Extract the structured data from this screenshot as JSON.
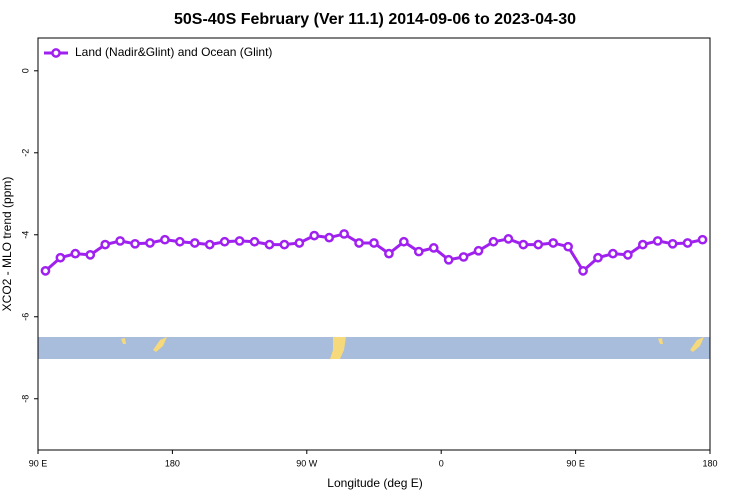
{
  "chart_data": {
    "type": "line",
    "title": "50S-40S February (Ver 11.1)   2014-09-06 to 2023-04-30",
    "xlabel": "Longitude (deg E)",
    "ylabel": "XCO2 - MLO trend (ppm)",
    "x": [
      95,
      105,
      115,
      125,
      135,
      145,
      155,
      165,
      175,
      185,
      195,
      205,
      215,
      225,
      235,
      245,
      255,
      265,
      275,
      285,
      295,
      305,
      315,
      325,
      335,
      345,
      355,
      365,
      375,
      385,
      395,
      405,
      415,
      425,
      435,
      445,
      455,
      465,
      475,
      485,
      495,
      505,
      515,
      525,
      535
    ],
    "series": [
      {
        "name": "Land (Nadir&Glint) and Ocean (Glint)",
        "color": "#a020f0",
        "values": [
          -4.88,
          -4.56,
          -4.46,
          -4.49,
          -4.24,
          -4.15,
          -4.22,
          -4.2,
          -4.12,
          -4.17,
          -4.2,
          -4.24,
          -4.17,
          -4.15,
          -4.17,
          -4.24,
          -4.24,
          -4.2,
          -4.02,
          -4.07,
          -3.98,
          -4.2,
          -4.2,
          -4.46,
          -4.17,
          -4.41,
          -4.32,
          -4.61,
          -4.54,
          -4.39,
          -4.17,
          -4.1,
          -4.24,
          -4.24,
          -4.2,
          -4.29,
          -4.88,
          -4.56,
          -4.46,
          -4.49,
          -4.24,
          -4.15,
          -4.22,
          -4.2,
          -4.12
        ]
      }
    ],
    "xlim": [
      90,
      540
    ],
    "xticks": [
      {
        "value": 90,
        "label": "90 E"
      },
      180,
      {
        "value": 270,
        "label": "90 W"
      },
      {
        "value": 360,
        "label": "0"
      },
      {
        "value": 450,
        "label": "90 E"
      },
      {
        "value": 540,
        "label": "180"
      }
    ],
    "ylim": [
      -9.25,
      0.8
    ],
    "yticks": [
      0,
      -2,
      -4,
      -6,
      -8
    ],
    "legend": "top-left"
  }
}
